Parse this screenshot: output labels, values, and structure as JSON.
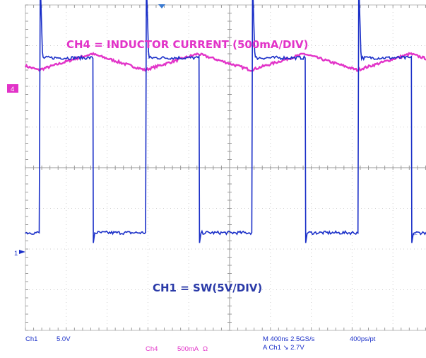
{
  "chart_data": {
    "type": "line",
    "title": "",
    "grid": true,
    "series": [
      {
        "name": "CH4 = INDUCTOR CURRENT (500mA/DIV)",
        "channel": "4",
        "color": "#e233c8",
        "period_ns": 1040,
        "offset_div": 2.5,
        "min_div": -0.1,
        "max_div": 0.3,
        "peaks_ns": [
          650,
          1690,
          2730,
          3770
        ],
        "troughs_ns": [
          130,
          1170,
          2210,
          3250
        ]
      },
      {
        "name": "CH1 = SW(5V/DIV)",
        "channel": "1",
        "color": "#1a2fc8",
        "period_ns": 1040,
        "offset_div": -1.4,
        "high_div": 4.1,
        "low_div": -0.2,
        "spike_div": 6.0,
        "rise_ns": [
          145,
          1185,
          2225,
          3265
        ],
        "fall_ns": [
          665,
          1705,
          2745,
          3785
        ]
      }
    ],
    "x_range_ns": [
      0,
      4000
    ],
    "x_divs": 10,
    "y_divs": 8
  },
  "annotations": {
    "ch4_label": "CH4 = INDUCTOR CURRENT (500mA/DIV)",
    "ch1_label": "CH1 = SW(5V/DIV)"
  },
  "markers": {
    "ch4": "4",
    "ch1": "1",
    "trigger_arrow": "←"
  },
  "status": {
    "ch1": "Ch1",
    "ch1_scale": "5.0V",
    "ch4": "Ch4",
    "ch4_scale": "500mA",
    "ch4_coupling": "Ω",
    "timebase": "M 400ns 2.5GS/s",
    "record": "400ps/pt",
    "trigger": "A  Ch1  ↘  2.7V"
  }
}
